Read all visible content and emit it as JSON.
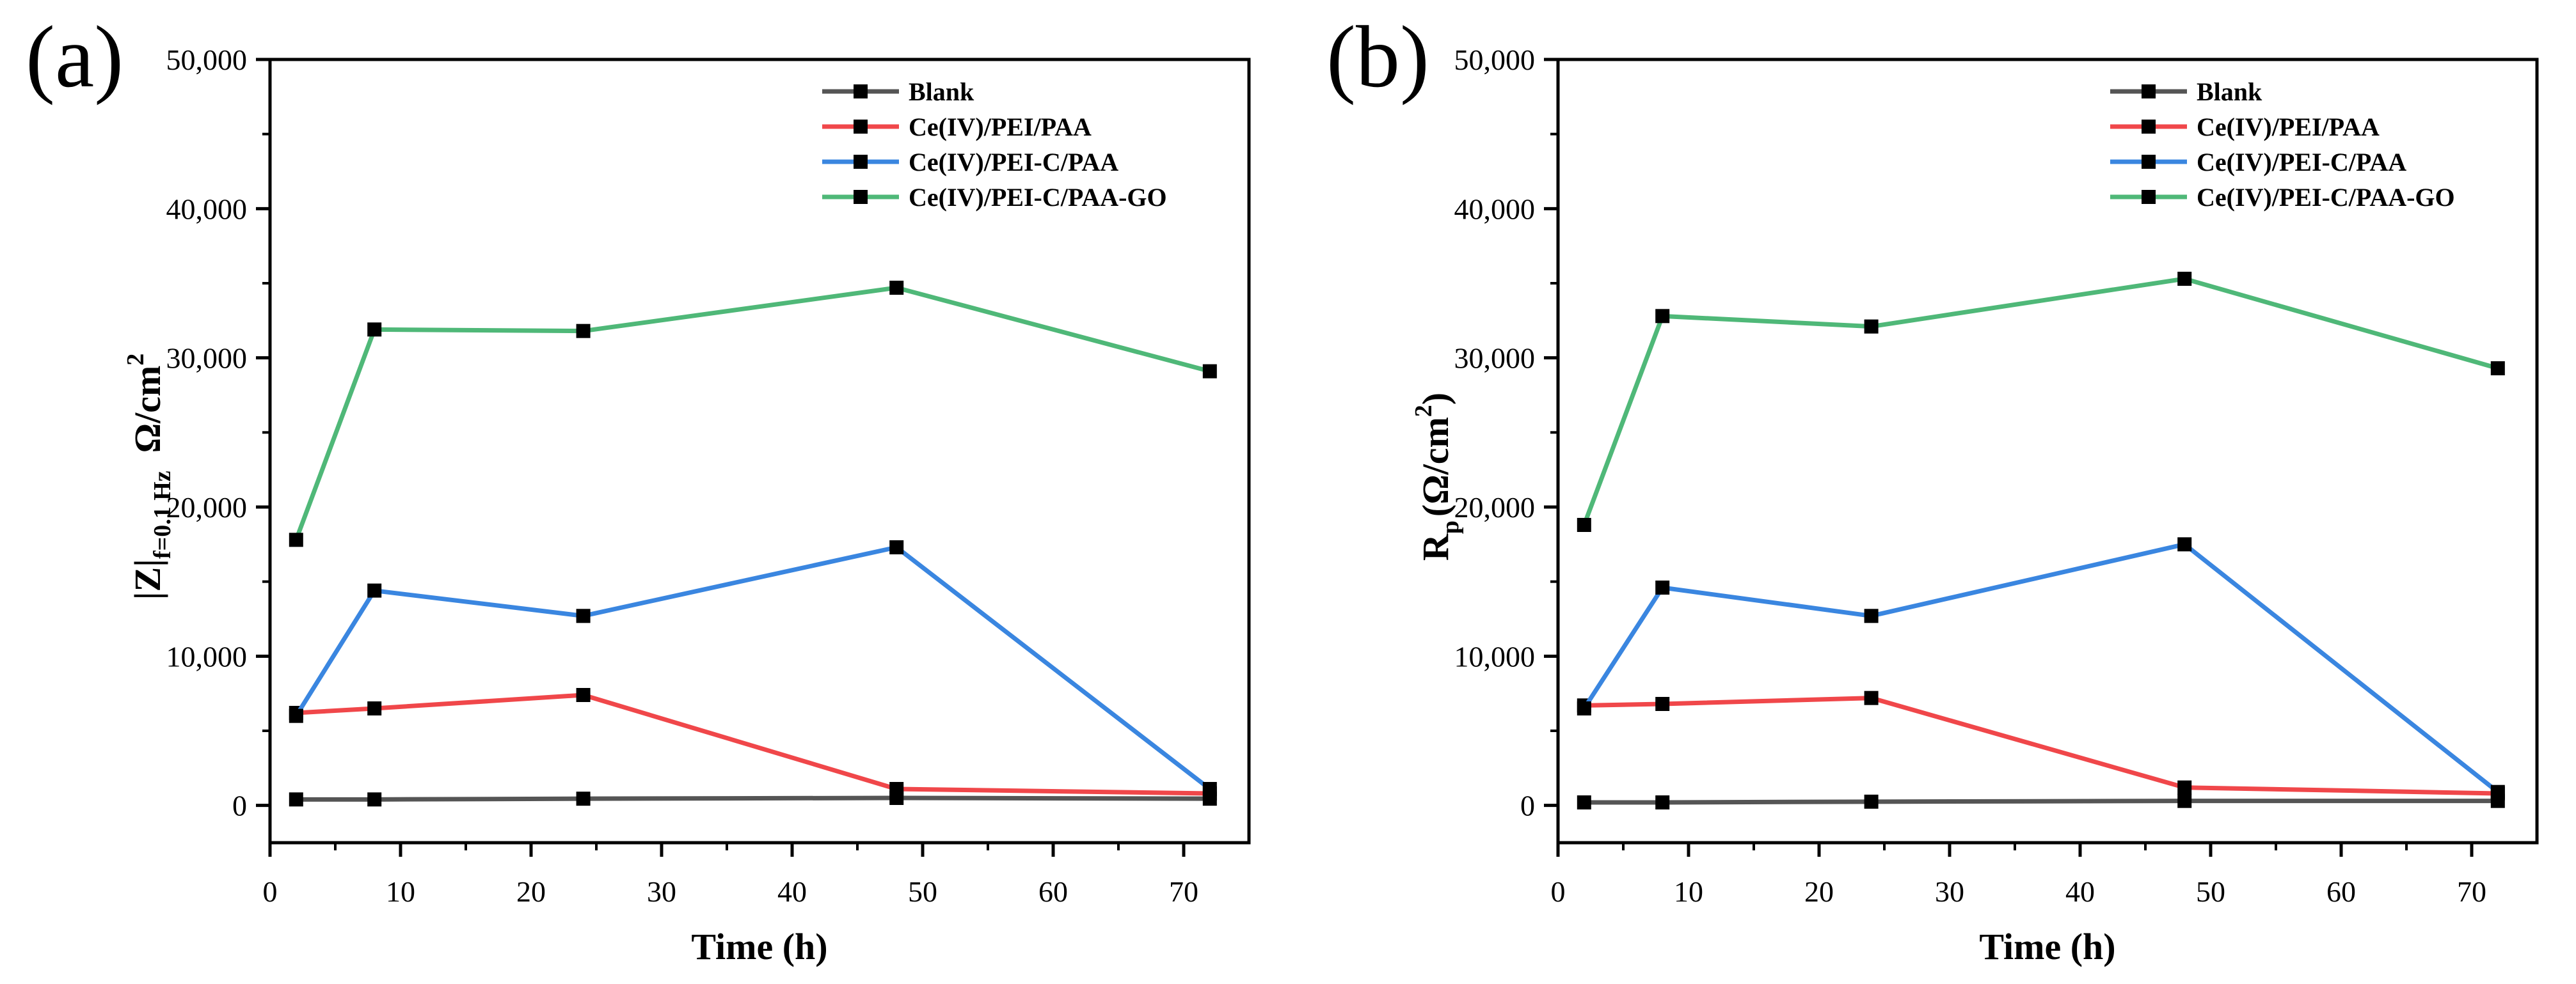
{
  "chart_data": [
    {
      "type": "line",
      "panel_label": "(a)",
      "xlabel": "Time (h)",
      "ylabel": "|Z|f=0.1 Hz  Ω/cm2",
      "ylabel_parts": {
        "main": "|Z|",
        "sub": "f=0.1 Hz",
        "unit": "Ω/cm",
        "sup": "2"
      },
      "xlim": [
        0,
        75
      ],
      "ylim": [
        -2500,
        50000
      ],
      "xticks": [
        0,
        10,
        20,
        30,
        40,
        50,
        60,
        70
      ],
      "yticks": [
        0,
        10000,
        20000,
        30000,
        40000,
        50000
      ],
      "ytick_labels": [
        "0",
        "10,000",
        "20,000",
        "30,000",
        "40,000",
        "50,000"
      ],
      "x": [
        2,
        8,
        24,
        48,
        72
      ],
      "series": [
        {
          "name": "Blank",
          "color": "#555555",
          "values": [
            400,
            400,
            450,
            500,
            450
          ]
        },
        {
          "name": "Ce(IV)/PEI/PAA",
          "color": "#f0474a",
          "values": [
            6200,
            6500,
            7400,
            1100,
            800
          ]
        },
        {
          "name": "Ce(IV)/PEI-C/PAA",
          "color": "#3a86e0",
          "values": [
            6000,
            14400,
            12700,
            17300,
            1100
          ]
        },
        {
          "name": "Ce(IV)/PEI-C/PAA-GO",
          "color": "#4fb878",
          "values": [
            17800,
            31900,
            31800,
            34700,
            29100
          ]
        }
      ]
    },
    {
      "type": "line",
      "panel_label": "(b)",
      "xlabel": "Time (h)",
      "ylabel": "Rp(Ω/cm2)",
      "ylabel_parts": {
        "main": "R",
        "sub": "p",
        "unit": "(Ω/cm",
        "sup": "2",
        "tail": ")"
      },
      "xlim": [
        0,
        75
      ],
      "ylim": [
        -2500,
        50000
      ],
      "xticks": [
        0,
        10,
        20,
        30,
        40,
        50,
        60,
        70
      ],
      "yticks": [
        0,
        10000,
        20000,
        30000,
        40000,
        50000
      ],
      "ytick_labels": [
        "0",
        "10,000",
        "20,000",
        "30,000",
        "40,000",
        "50,000"
      ],
      "x": [
        2,
        8,
        24,
        48,
        72
      ],
      "series": [
        {
          "name": "Blank",
          "color": "#555555",
          "values": [
            200,
            200,
            250,
            300,
            300
          ]
        },
        {
          "name": "Ce(IV)/PEI/PAA",
          "color": "#f0474a",
          "values": [
            6700,
            6800,
            7200,
            1200,
            800
          ]
        },
        {
          "name": "Ce(IV)/PEI-C/PAA",
          "color": "#3a86e0",
          "values": [
            6500,
            14600,
            12700,
            17500,
            900
          ]
        },
        {
          "name": "Ce(IV)/PEI-C/PAA-GO",
          "color": "#4fb878",
          "values": [
            18800,
            32800,
            32100,
            35300,
            29300
          ]
        }
      ]
    }
  ]
}
